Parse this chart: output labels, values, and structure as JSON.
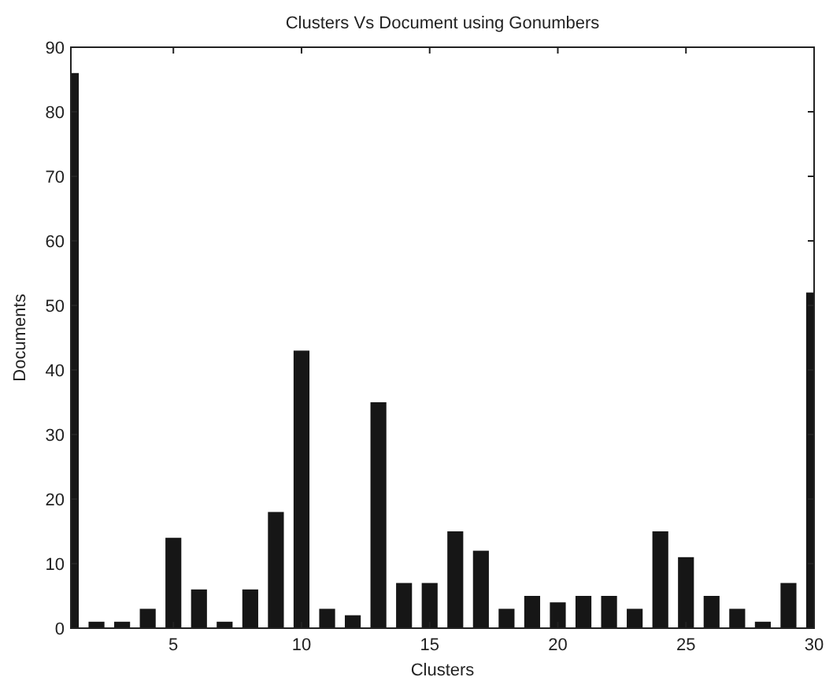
{
  "chart_data": {
    "type": "bar",
    "title": "Clusters Vs Document using Gonumbers",
    "xlabel": "Clusters",
    "ylabel": "Documents",
    "x": [
      1,
      2,
      3,
      4,
      5,
      6,
      7,
      8,
      9,
      10,
      11,
      12,
      13,
      14,
      15,
      16,
      17,
      18,
      19,
      20,
      21,
      22,
      23,
      24,
      25,
      26,
      27,
      28,
      29,
      30
    ],
    "values": [
      86,
      1,
      1,
      3,
      14,
      6,
      1,
      6,
      18,
      43,
      3,
      2,
      35,
      7,
      7,
      15,
      12,
      3,
      5,
      4,
      5,
      5,
      3,
      15,
      11,
      5,
      3,
      1,
      7,
      52
    ],
    "color": "#161616",
    "xlim": [
      1,
      30
    ],
    "xticks": [
      5,
      10,
      15,
      20,
      25,
      30
    ],
    "ylim": [
      0,
      90
    ],
    "yticks": [
      0,
      10,
      20,
      30,
      40,
      50,
      60,
      70,
      80,
      90
    ],
    "grid": false
  }
}
